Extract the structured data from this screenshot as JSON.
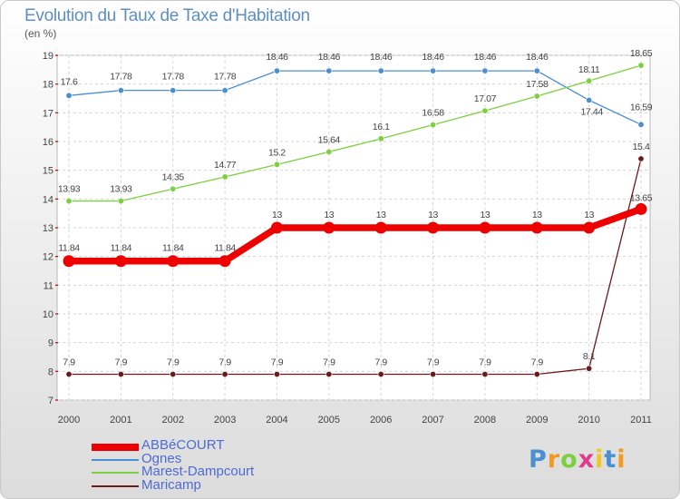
{
  "chart_data": {
    "type": "line",
    "title": "Evolution du Taux de Taxe d'Habitation",
    "subtitle": "(en %)",
    "categories": [
      "2000",
      "2001",
      "2002",
      "2003",
      "2004",
      "2005",
      "2006",
      "2007",
      "2008",
      "2009",
      "2010",
      "2011"
    ],
    "ylim": [
      7,
      19
    ],
    "yticks": [
      "7",
      "8",
      "9",
      "10",
      "11",
      "12",
      "13",
      "14",
      "15",
      "16",
      "17",
      "18",
      "19"
    ],
    "grid": "horizontal and vertical, dashed",
    "legend_position": "bottom-left",
    "series": [
      {
        "name": "Maricamp",
        "color": "#6b1a1a",
        "values": [
          7.9,
          7.9,
          7.9,
          7.9,
          7.9,
          7.9,
          7.9,
          7.9,
          7.9,
          7.9,
          8.1,
          15.4
        ],
        "labels": [
          "7.9",
          "7.9",
          "7.9",
          "7.9",
          "7.9",
          "7.9",
          "7.9",
          "7.9",
          "7.9",
          "7.9",
          "8.1",
          "15.4"
        ]
      },
      {
        "name": "Ognes",
        "color": "#4a8fd0",
        "values": [
          17.6,
          17.78,
          17.78,
          17.78,
          18.46,
          18.46,
          18.46,
          18.46,
          18.46,
          18.46,
          17.44,
          16.59
        ],
        "labels": [
          "17.6",
          "17.78",
          "17.78",
          "17.78",
          "18.46",
          "18.46",
          "18.46",
          "18.46",
          "18.46",
          "18.46",
          "17.44",
          "16.59"
        ]
      },
      {
        "name": "Marest-Dampcourt",
        "color": "#7ccf3e",
        "values": [
          13.93,
          13.93,
          14.35,
          14.77,
          15.2,
          15.64,
          16.1,
          16.58,
          17.07,
          17.58,
          18.11,
          18.65
        ],
        "labels": [
          "13.93",
          "13.93",
          "14.35",
          "14.77",
          "15.2",
          "15.64",
          "16.1",
          "16.58",
          "17.07",
          "17.58",
          "18.11",
          "18.65"
        ]
      },
      {
        "name": "ABBéCOURT",
        "color": "#ee0000",
        "values": [
          11.84,
          11.84,
          11.84,
          11.84,
          13,
          13,
          13,
          13,
          13,
          13,
          13,
          13.65
        ],
        "labels": [
          "11.84",
          "11.84",
          "11.84",
          "11.84",
          "13",
          "13",
          "13",
          "13",
          "13",
          "13",
          "13",
          "13.65"
        ]
      }
    ]
  },
  "legend": [
    {
      "label": "ABBéCOURT",
      "color": "#ee0000"
    },
    {
      "label": "Ognes",
      "color": "#4a8fd0"
    },
    {
      "label": "Marest-Dampcourt",
      "color": "#7ccf3e"
    },
    {
      "label": "Maricamp",
      "color": "#6b1a1a"
    }
  ],
  "logo": {
    "letters": [
      "P",
      "r",
      "o",
      "x",
      "i",
      "t",
      "i"
    ],
    "colors": [
      "#4a8fd0",
      "#f29a1f",
      "#7ccf3e",
      "#e23b8e",
      "#f2c81f",
      "#4a8fd0",
      "#f29a1f"
    ]
  }
}
